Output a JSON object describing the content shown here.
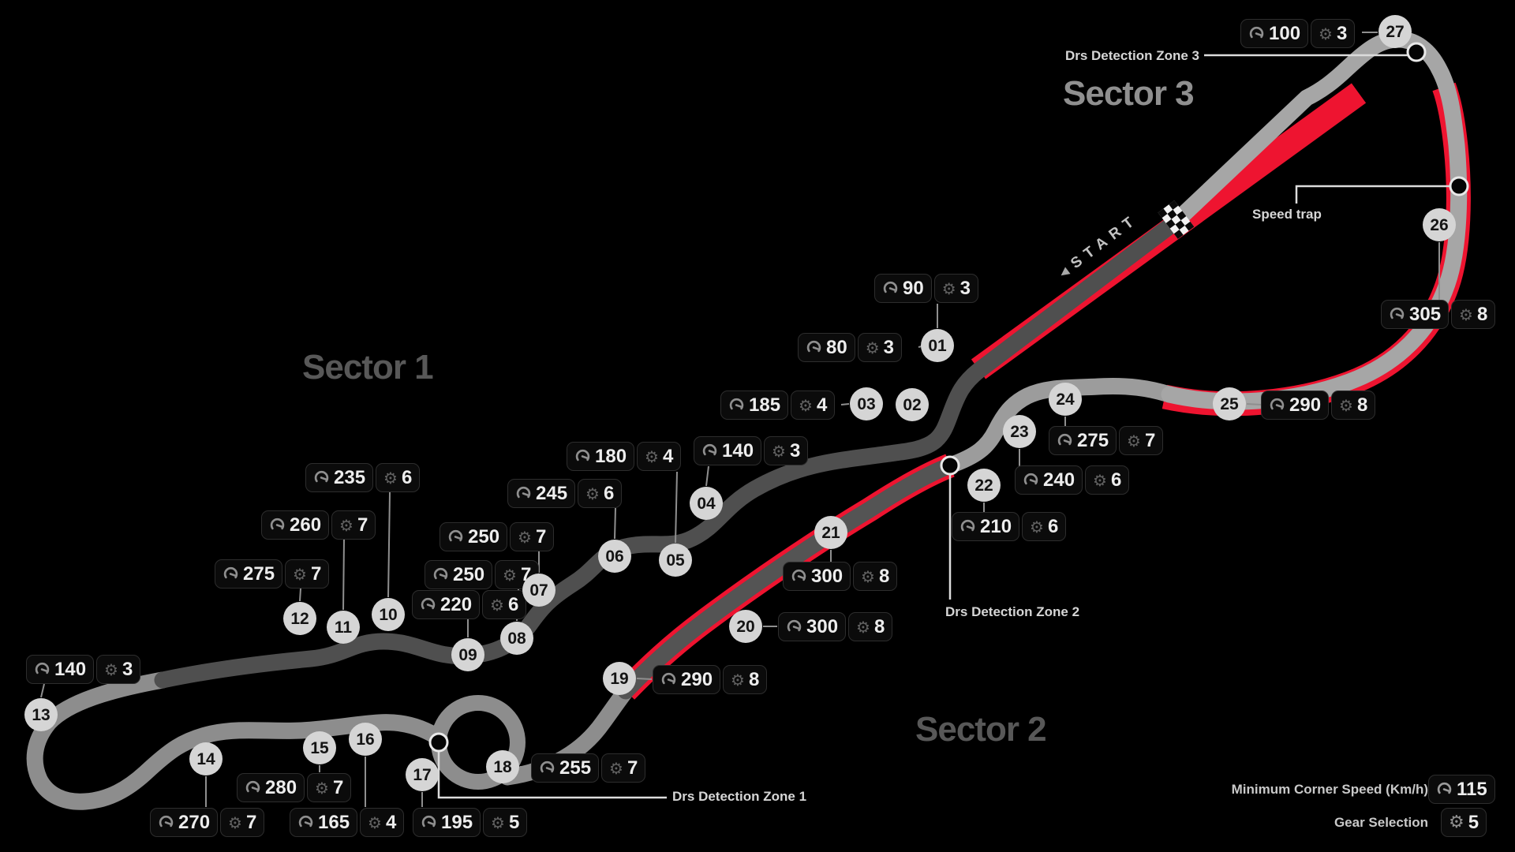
{
  "sectors": [
    {
      "label": "Sector 1"
    },
    {
      "label": "Sector 2"
    },
    {
      "label": "Sector 3"
    }
  ],
  "start_label": "START",
  "corners": [
    {
      "id": "01",
      "speed": "90",
      "gear": "3"
    },
    {
      "id": "02",
      "speed": "80",
      "gear": "3"
    },
    {
      "id": "03",
      "speed": "185",
      "gear": "4"
    },
    {
      "id": "04",
      "speed": "140",
      "gear": "3"
    },
    {
      "id": "05",
      "speed": "180",
      "gear": "4"
    },
    {
      "id": "06",
      "speed": "245",
      "gear": "6"
    },
    {
      "id": "07",
      "speed": "250",
      "gear": "7"
    },
    {
      "id": "08",
      "speed": "250",
      "gear": "7"
    },
    {
      "id": "09",
      "speed": "220",
      "gear": "6"
    },
    {
      "id": "10",
      "speed": "235",
      "gear": "6"
    },
    {
      "id": "11",
      "speed": "260",
      "gear": "7"
    },
    {
      "id": "12",
      "speed": "275",
      "gear": "7"
    },
    {
      "id": "13",
      "speed": "140",
      "gear": "3"
    },
    {
      "id": "14",
      "speed": "270",
      "gear": "7"
    },
    {
      "id": "15",
      "speed": "280",
      "gear": "7"
    },
    {
      "id": "16",
      "speed": "165",
      "gear": "4"
    },
    {
      "id": "17",
      "speed": "195",
      "gear": "5"
    },
    {
      "id": "18",
      "speed": "255",
      "gear": "7"
    },
    {
      "id": "19",
      "speed": "290",
      "gear": "8"
    },
    {
      "id": "20",
      "speed": "300",
      "gear": "8"
    },
    {
      "id": "21",
      "speed": "300",
      "gear": "8"
    },
    {
      "id": "22",
      "speed": "210",
      "gear": "6"
    },
    {
      "id": "23",
      "speed": "240",
      "gear": "6"
    },
    {
      "id": "24",
      "speed": "275",
      "gear": "7"
    },
    {
      "id": "25",
      "speed": "290",
      "gear": "8"
    },
    {
      "id": "26",
      "speed": "305",
      "gear": "8"
    },
    {
      "id": "27",
      "speed": "100",
      "gear": "3"
    }
  ],
  "annotations": {
    "drs_zone_1": "Drs Detection Zone 1",
    "drs_zone_2": "Drs Detection Zone 2",
    "drs_zone_3": "Drs Detection Zone 3",
    "speed_trap": "Speed trap"
  },
  "legend": {
    "min_corner_speed_label": "Minimum Corner Speed (Km/h)",
    "min_corner_speed_value": "115",
    "gear_selection_label": "Gear Selection",
    "gear_selection_value": "5"
  },
  "icons": {
    "gear_glyph": "⚙",
    "start_arrow_glyph": "◀"
  },
  "colors": {
    "background": "#000000",
    "track_dark": "#4f4f4f",
    "track_dark_drs": "#545454",
    "track_light": "#8d8d8d",
    "track_light_esses": "#9c9c9c",
    "track_light_loop": "#a6a6a6",
    "drs_red": "#ee1430",
    "corner_marker_bg": "#d5d5d5",
    "connector_gray": "#8f8f8f",
    "callout_white": "#dcdcdc"
  }
}
